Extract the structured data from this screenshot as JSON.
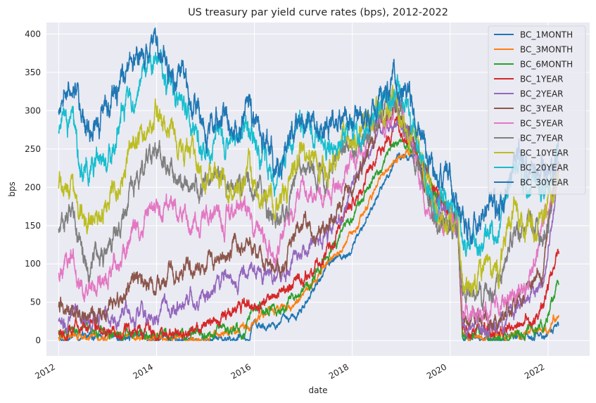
{
  "chart_data": {
    "type": "line",
    "title": "US treasury par yield curve rates (bps), 2012-2022",
    "xlabel": "date",
    "ylabel": "bps",
    "xlim": [
      2011.75,
      2022.85
    ],
    "ylim": [
      -20,
      415
    ],
    "x_ticks": [
      2012,
      2014,
      2016,
      2018,
      2020,
      2022
    ],
    "y_ticks": [
      0,
      50,
      100,
      150,
      200,
      250,
      300,
      350,
      400
    ],
    "x_tick_labels": [
      "2012",
      "2014",
      "2016",
      "2018",
      "2020",
      "2022"
    ],
    "y_tick_labels": [
      "0",
      "50",
      "100",
      "150",
      "200",
      "250",
      "300",
      "350",
      "400"
    ],
    "grid": true,
    "legend_position": "top-right",
    "series": [
      {
        "name": "BC_1MONTH",
        "color": "#1f77b4",
        "noise": 1.5,
        "points": [
          [
            2012,
            3
          ],
          [
            2012.5,
            6
          ],
          [
            2013,
            4
          ],
          [
            2013.5,
            3
          ],
          [
            2014,
            2
          ],
          [
            2015,
            2
          ],
          [
            2015.9,
            1
          ],
          [
            2016,
            20
          ],
          [
            2016.9,
            30
          ],
          [
            2017,
            45
          ],
          [
            2017.5,
            95
          ],
          [
            2017.9,
            115
          ],
          [
            2018.3,
            165
          ],
          [
            2018.9,
            235
          ],
          [
            2019.3,
            242
          ],
          [
            2019.6,
            205
          ],
          [
            2019.9,
            155
          ],
          [
            2020.15,
            155
          ],
          [
            2020.25,
            5
          ],
          [
            2021,
            5
          ],
          [
            2022,
            5
          ],
          [
            2022.2,
            20
          ]
        ]
      },
      {
        "name": "BC_3MONTH",
        "color": "#ff7f0e",
        "noise": 1.5,
        "points": [
          [
            2012,
            5
          ],
          [
            2012.5,
            9
          ],
          [
            2013,
            7
          ],
          [
            2013.5,
            4
          ],
          [
            2014,
            3
          ],
          [
            2015,
            3
          ],
          [
            2015.9,
            18
          ],
          [
            2016,
            28
          ],
          [
            2016.9,
            50
          ],
          [
            2017.5,
            100
          ],
          [
            2018,
            140
          ],
          [
            2018.5,
            200
          ],
          [
            2018.9,
            240
          ],
          [
            2019.3,
            243
          ],
          [
            2019.7,
            195
          ],
          [
            2020.15,
            155
          ],
          [
            2020.25,
            5
          ],
          [
            2021,
            4
          ],
          [
            2022,
            10
          ],
          [
            2022.2,
            40
          ]
        ]
      },
      {
        "name": "BC_6MONTH",
        "color": "#2ca02c",
        "noise": 2,
        "points": [
          [
            2012,
            10
          ],
          [
            2012.5,
            15
          ],
          [
            2013,
            10
          ],
          [
            2014,
            6
          ],
          [
            2015,
            8
          ],
          [
            2015.8,
            15
          ],
          [
            2016,
            45
          ],
          [
            2016.5,
            40
          ],
          [
            2016.9,
            60
          ],
          [
            2017.5,
            110
          ],
          [
            2018,
            160
          ],
          [
            2018.5,
            220
          ],
          [
            2018.9,
            255
          ],
          [
            2019.3,
            250
          ],
          [
            2019.7,
            195
          ],
          [
            2020.15,
            155
          ],
          [
            2020.25,
            10
          ],
          [
            2021,
            5
          ],
          [
            2021.9,
            15
          ],
          [
            2022.2,
            78
          ]
        ]
      },
      {
        "name": "BC_1YEAR",
        "color": "#d62728",
        "noise": 2.5,
        "points": [
          [
            2012,
            12
          ],
          [
            2012.5,
            18
          ],
          [
            2013,
            15
          ],
          [
            2014,
            11
          ],
          [
            2014.5,
            10
          ],
          [
            2015,
            22
          ],
          [
            2015.9,
            50
          ],
          [
            2016.5,
            55
          ],
          [
            2016.9,
            80
          ],
          [
            2017.5,
            120
          ],
          [
            2018,
            180
          ],
          [
            2018.5,
            240
          ],
          [
            2018.9,
            272
          ],
          [
            2019.3,
            250
          ],
          [
            2019.7,
            190
          ],
          [
            2020.15,
            155
          ],
          [
            2020.25,
            15
          ],
          [
            2021,
            8
          ],
          [
            2021.9,
            40
          ],
          [
            2022.2,
            115
          ]
        ]
      },
      {
        "name": "BC_2YEAR",
        "color": "#9467bd",
        "noise": 3,
        "points": [
          [
            2012,
            25
          ],
          [
            2012.5,
            28
          ],
          [
            2013,
            25
          ],
          [
            2013.5,
            35
          ],
          [
            2014,
            38
          ],
          [
            2014.5,
            50
          ],
          [
            2015,
            60
          ],
          [
            2015.9,
            95
          ],
          [
            2016.5,
            75
          ],
          [
            2016.9,
            115
          ],
          [
            2017.5,
            140
          ],
          [
            2018,
            195
          ],
          [
            2018.5,
            265
          ],
          [
            2018.9,
            290
          ],
          [
            2019.3,
            245
          ],
          [
            2019.7,
            175
          ],
          [
            2020.15,
            150
          ],
          [
            2020.25,
            25
          ],
          [
            2021,
            13
          ],
          [
            2021.9,
            75
          ],
          [
            2022.2,
            220
          ]
        ]
      },
      {
        "name": "BC_3YEAR",
        "color": "#8c564b",
        "noise": 3.5,
        "points": [
          [
            2012,
            38
          ],
          [
            2012.25,
            50
          ],
          [
            2012.5,
            35
          ],
          [
            2013,
            35
          ],
          [
            2013.5,
            70
          ],
          [
            2014,
            75
          ],
          [
            2014.5,
            95
          ],
          [
            2015,
            100
          ],
          [
            2015.9,
            125
          ],
          [
            2016.5,
            90
          ],
          [
            2016.9,
            145
          ],
          [
            2017.5,
            155
          ],
          [
            2018,
            205
          ],
          [
            2018.5,
            275
          ],
          [
            2018.9,
            300
          ],
          [
            2019.3,
            240
          ],
          [
            2019.7,
            165
          ],
          [
            2020.15,
            150
          ],
          [
            2020.25,
            25
          ],
          [
            2021,
            20
          ],
          [
            2021.9,
            100
          ],
          [
            2022.2,
            230
          ]
        ]
      },
      {
        "name": "BC_5YEAR",
        "color": "#e377c2",
        "noise": 4,
        "points": [
          [
            2012,
            88
          ],
          [
            2012.25,
            110
          ],
          [
            2012.5,
            65
          ],
          [
            2013,
            70
          ],
          [
            2013.5,
            140
          ],
          [
            2014,
            170
          ],
          [
            2014.5,
            165
          ],
          [
            2015,
            160
          ],
          [
            2015.9,
            165
          ],
          [
            2016.5,
            110
          ],
          [
            2016.9,
            195
          ],
          [
            2017.5,
            185
          ],
          [
            2018,
            230
          ],
          [
            2018.5,
            280
          ],
          [
            2018.9,
            300
          ],
          [
            2019.3,
            235
          ],
          [
            2019.7,
            155
          ],
          [
            2020.15,
            150
          ],
          [
            2020.25,
            40
          ],
          [
            2021,
            40
          ],
          [
            2021.6,
            85
          ],
          [
            2022.2,
            230
          ]
        ]
      },
      {
        "name": "BC_7YEAR",
        "color": "#7f7f7f",
        "noise": 4.5,
        "points": [
          [
            2012,
            140
          ],
          [
            2012.25,
            170
          ],
          [
            2012.5,
            105
          ],
          [
            2013,
            105
          ],
          [
            2013.5,
            200
          ],
          [
            2014,
            240
          ],
          [
            2014.5,
            215
          ],
          [
            2015,
            200
          ],
          [
            2015.9,
            205
          ],
          [
            2016.5,
            145
          ],
          [
            2016.9,
            225
          ],
          [
            2017.5,
            215
          ],
          [
            2018,
            255
          ],
          [
            2018.5,
            290
          ],
          [
            2018.9,
            310
          ],
          [
            2019.3,
            240
          ],
          [
            2019.7,
            160
          ],
          [
            2020.15,
            150
          ],
          [
            2020.25,
            60
          ],
          [
            2021,
            70
          ],
          [
            2021.3,
            145
          ],
          [
            2021.9,
            140
          ],
          [
            2022.2,
            225
          ]
        ]
      },
      {
        "name": "BC_10YEAR",
        "color": "#bcbd22",
        "noise": 5,
        "points": [
          [
            2012,
            200
          ],
          [
            2012.25,
            225
          ],
          [
            2012.5,
            155
          ],
          [
            2013,
            180
          ],
          [
            2013.5,
            255
          ],
          [
            2014,
            295
          ],
          [
            2014.5,
            255
          ],
          [
            2015,
            215
          ],
          [
            2015.9,
            220
          ],
          [
            2016.5,
            165
          ],
          [
            2016.9,
            245
          ],
          [
            2017.5,
            225
          ],
          [
            2018,
            260
          ],
          [
            2018.5,
            290
          ],
          [
            2018.9,
            318
          ],
          [
            2019.3,
            250
          ],
          [
            2019.7,
            165
          ],
          [
            2020.15,
            150
          ],
          [
            2020.25,
            70
          ],
          [
            2021,
            95
          ],
          [
            2021.3,
            170
          ],
          [
            2021.9,
            155
          ],
          [
            2022.2,
            225
          ]
        ]
      },
      {
        "name": "BC_20YEAR",
        "color": "#17becf",
        "noise": 5,
        "points": [
          [
            2012,
            270
          ],
          [
            2012.25,
            280
          ],
          [
            2012.5,
            225
          ],
          [
            2013,
            245
          ],
          [
            2013.5,
            330
          ],
          [
            2014,
            365
          ],
          [
            2014.5,
            310
          ],
          [
            2015,
            265
          ],
          [
            2015.9,
            275
          ],
          [
            2016.5,
            205
          ],
          [
            2016.9,
            275
          ],
          [
            2017.5,
            255
          ],
          [
            2018,
            280
          ],
          [
            2018.5,
            295
          ],
          [
            2018.9,
            325
          ],
          [
            2019.3,
            270
          ],
          [
            2019.7,
            185
          ],
          [
            2020.15,
            170
          ],
          [
            2020.25,
            110
          ],
          [
            2021,
            145
          ],
          [
            2021.3,
            225
          ],
          [
            2021.9,
            195
          ],
          [
            2022.2,
            250
          ]
        ]
      },
      {
        "name": "BC_30YEAR",
        "color": "#1f77b4",
        "noise": 5.5,
        "points": [
          [
            2012,
            300
          ],
          [
            2012.25,
            330
          ],
          [
            2012.5,
            270
          ],
          [
            2013,
            300
          ],
          [
            2013.5,
            365
          ],
          [
            2014,
            390
          ],
          [
            2014.5,
            335
          ],
          [
            2015,
            270
          ],
          [
            2015.9,
            300
          ],
          [
            2016.5,
            225
          ],
          [
            2016.9,
            300
          ],
          [
            2017.5,
            280
          ],
          [
            2018,
            295
          ],
          [
            2018.5,
            305
          ],
          [
            2018.9,
            335
          ],
          [
            2019.3,
            290
          ],
          [
            2019.7,
            210
          ],
          [
            2020.15,
            200
          ],
          [
            2020.25,
            140
          ],
          [
            2021,
            165
          ],
          [
            2021.3,
            240
          ],
          [
            2021.9,
            205
          ],
          [
            2022.2,
            250
          ]
        ]
      }
    ]
  }
}
